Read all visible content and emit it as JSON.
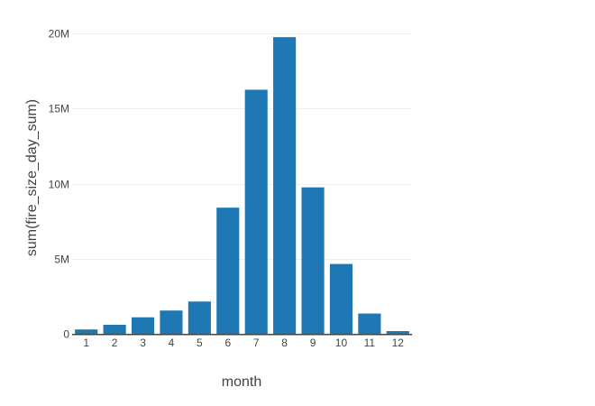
{
  "chart_data": {
    "type": "bar",
    "xlabel": "month",
    "ylabel": "sum(fire_size_day_sum)",
    "categories": [
      "1",
      "2",
      "3",
      "4",
      "5",
      "6",
      "7",
      "8",
      "9",
      "10",
      "11",
      "12"
    ],
    "values": [
      290000,
      600000,
      1100000,
      1550000,
      2150000,
      8400000,
      16250000,
      19750000,
      9750000,
      4650000,
      1350000,
      180000
    ],
    "ylim": [
      0,
      20000000
    ],
    "yticks": [
      {
        "value": 0,
        "label": "0"
      },
      {
        "value": 5000000,
        "label": "5M"
      },
      {
        "value": 10000000,
        "label": "10M"
      },
      {
        "value": 15000000,
        "label": "15M"
      },
      {
        "value": 20000000,
        "label": "20M"
      }
    ],
    "grid": true,
    "colors": {
      "bar": "#1f77b4",
      "grid": "#eeeeee",
      "text": "#444444"
    }
  }
}
